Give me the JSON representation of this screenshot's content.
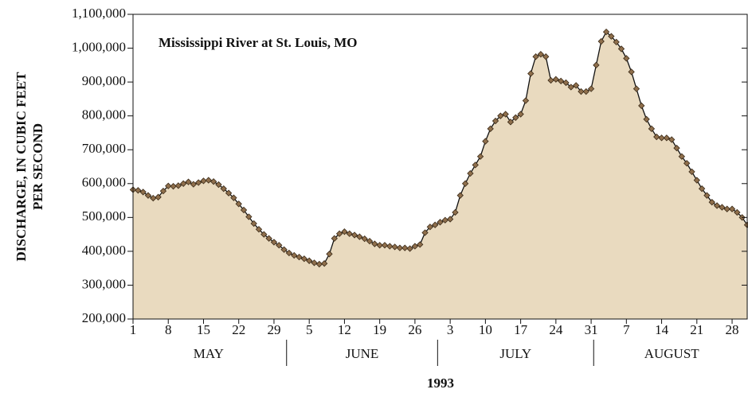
{
  "chart_data": {
    "type": "area",
    "title": "Mississippi River  at St. Louis, MO",
    "xlabel": "1993",
    "ylabel": [
      "DISCHARGE, IN CUBIC FEET",
      "PER SECOND"
    ],
    "months": [
      "MAY",
      "JUNE",
      "JULY",
      "AUGUST"
    ],
    "fill_color": "#e9dabf",
    "line_color": "#111111",
    "marker_color": "#8f6f4c",
    "xlim": [
      "1993-05-01",
      "1993-08-31"
    ],
    "xticks": [
      {
        "value": "1993-05-01",
        "label": "1"
      },
      {
        "value": "1993-05-08",
        "label": "8"
      },
      {
        "value": "1993-05-15",
        "label": "15"
      },
      {
        "value": "1993-05-22",
        "label": "22"
      },
      {
        "value": "1993-05-29",
        "label": "29"
      },
      {
        "value": "1993-06-05",
        "label": "5"
      },
      {
        "value": "1993-06-12",
        "label": "12"
      },
      {
        "value": "1993-06-19",
        "label": "19"
      },
      {
        "value": "1993-06-26",
        "label": "26"
      },
      {
        "value": "1993-07-03",
        "label": "3"
      },
      {
        "value": "1993-07-10",
        "label": "10"
      },
      {
        "value": "1993-07-17",
        "label": "17"
      },
      {
        "value": "1993-07-24",
        "label": "24"
      },
      {
        "value": "1993-07-31",
        "label": "31"
      },
      {
        "value": "1993-08-07",
        "label": "7"
      },
      {
        "value": "1993-08-14",
        "label": "14"
      },
      {
        "value": "1993-08-21",
        "label": "21"
      },
      {
        "value": "1993-08-28",
        "label": "28"
      }
    ],
    "ylim": [
      200000,
      1100000
    ],
    "yticks": [
      {
        "value": 200000,
        "label": "200,000"
      },
      {
        "value": 300000,
        "label": "300,000"
      },
      {
        "value": 400000,
        "label": "400,000"
      },
      {
        "value": 500000,
        "label": "500,000"
      },
      {
        "value": 600000,
        "label": "600,000"
      },
      {
        "value": 700000,
        "label": "700,000"
      },
      {
        "value": 800000,
        "label": "800,000"
      },
      {
        "value": 900000,
        "label": "900,000"
      },
      {
        "value": 1000000,
        "label": "1,000,000"
      },
      {
        "value": 1100000,
        "label": "1,100,000"
      }
    ],
    "x": [
      "1993-05-01",
      "1993-05-02",
      "1993-05-03",
      "1993-05-04",
      "1993-05-05",
      "1993-05-06",
      "1993-05-07",
      "1993-05-08",
      "1993-05-09",
      "1993-05-10",
      "1993-05-11",
      "1993-05-12",
      "1993-05-13",
      "1993-05-14",
      "1993-05-15",
      "1993-05-16",
      "1993-05-17",
      "1993-05-18",
      "1993-05-19",
      "1993-05-20",
      "1993-05-21",
      "1993-05-22",
      "1993-05-23",
      "1993-05-24",
      "1993-05-25",
      "1993-05-26",
      "1993-05-27",
      "1993-05-28",
      "1993-05-29",
      "1993-05-30",
      "1993-05-31",
      "1993-06-01",
      "1993-06-02",
      "1993-06-03",
      "1993-06-04",
      "1993-06-05",
      "1993-06-06",
      "1993-06-07",
      "1993-06-08",
      "1993-06-09",
      "1993-06-10",
      "1993-06-11",
      "1993-06-12",
      "1993-06-13",
      "1993-06-14",
      "1993-06-15",
      "1993-06-16",
      "1993-06-17",
      "1993-06-18",
      "1993-06-19",
      "1993-06-20",
      "1993-06-21",
      "1993-06-22",
      "1993-06-23",
      "1993-06-24",
      "1993-06-25",
      "1993-06-26",
      "1993-06-27",
      "1993-06-28",
      "1993-06-29",
      "1993-06-30",
      "1993-07-01",
      "1993-07-02",
      "1993-07-03",
      "1993-07-04",
      "1993-07-05",
      "1993-07-06",
      "1993-07-07",
      "1993-07-08",
      "1993-07-09",
      "1993-07-10",
      "1993-07-11",
      "1993-07-12",
      "1993-07-13",
      "1993-07-14",
      "1993-07-15",
      "1993-07-16",
      "1993-07-17",
      "1993-07-18",
      "1993-07-19",
      "1993-07-20",
      "1993-07-21",
      "1993-07-22",
      "1993-07-23",
      "1993-07-24",
      "1993-07-25",
      "1993-07-26",
      "1993-07-27",
      "1993-07-28",
      "1993-07-29",
      "1993-07-30",
      "1993-07-31",
      "1993-08-01",
      "1993-08-02",
      "1993-08-03",
      "1993-08-04",
      "1993-08-05",
      "1993-08-06",
      "1993-08-07",
      "1993-08-08",
      "1993-08-09",
      "1993-08-10",
      "1993-08-11",
      "1993-08-12",
      "1993-08-13",
      "1993-08-14",
      "1993-08-15",
      "1993-08-16",
      "1993-08-17",
      "1993-08-18",
      "1993-08-19",
      "1993-08-20",
      "1993-08-21",
      "1993-08-22",
      "1993-08-23",
      "1993-08-24",
      "1993-08-25",
      "1993-08-26",
      "1993-08-27",
      "1993-08-28",
      "1993-08-29",
      "1993-08-30",
      "1993-08-31"
    ],
    "values": [
      582000,
      580000,
      575000,
      565000,
      557000,
      560000,
      578000,
      593000,
      592000,
      594000,
      600000,
      605000,
      598000,
      603000,
      608000,
      610000,
      606000,
      597000,
      585000,
      572000,
      558000,
      540000,
      522000,
      502000,
      482000,
      465000,
      450000,
      438000,
      427000,
      418000,
      405000,
      395000,
      388000,
      383000,
      378000,
      372000,
      366000,
      362000,
      364000,
      392000,
      438000,
      452000,
      458000,
      452000,
      448000,
      443000,
      437000,
      430000,
      422000,
      418000,
      418000,
      415000,
      413000,
      410000,
      410000,
      408000,
      415000,
      420000,
      455000,
      472000,
      478000,
      486000,
      492000,
      495000,
      515000,
      565000,
      600000,
      630000,
      655000,
      680000,
      725000,
      762000,
      785000,
      800000,
      805000,
      782000,
      795000,
      805000,
      845000,
      925000,
      975000,
      982000,
      975000,
      905000,
      908000,
      903000,
      898000,
      885000,
      890000,
      872000,
      872000,
      880000,
      950000,
      1020000,
      1048000,
      1035000,
      1018000,
      998000,
      970000,
      930000,
      880000,
      830000,
      790000,
      762000,
      738000,
      735000,
      735000,
      730000,
      705000,
      680000,
      660000,
      635000,
      610000,
      585000,
      565000,
      545000,
      535000,
      530000,
      525000,
      525000,
      515000,
      500000,
      478000
    ]
  }
}
